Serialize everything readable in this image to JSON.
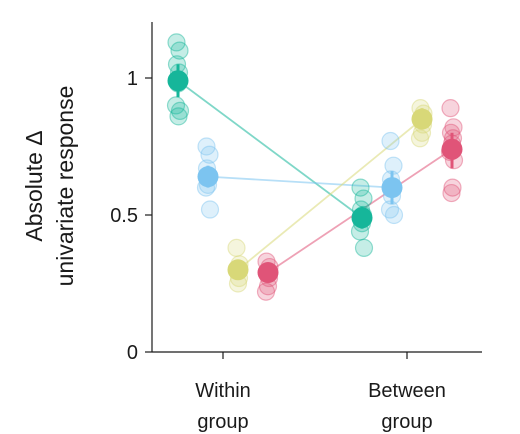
{
  "chart_data": {
    "type": "scatter",
    "ylabel": [
      "Absolute Δ",
      "univariate response"
    ],
    "ylim": [
      0,
      1.2
    ],
    "yticks": [
      {
        "value": 0,
        "label": "0"
      },
      {
        "value": 0.5,
        "label": "0.5"
      },
      {
        "value": 1,
        "label": "1"
      }
    ],
    "categories": [
      {
        "id": "within",
        "label": [
          "Within",
          "group"
        ]
      },
      {
        "id": "between",
        "label": [
          "Between",
          "group"
        ]
      }
    ],
    "series": [
      {
        "color": "#16b69a",
        "within": {
          "mean": 0.99,
          "ci": [
            0.93,
            1.05
          ],
          "points": [
            1.13,
            1.1,
            1.05,
            1.02,
            0.98,
            0.9,
            0.88,
            0.86
          ]
        },
        "between": {
          "mean": 0.49,
          "ci": [
            0.45,
            0.53
          ],
          "points": [
            0.6,
            0.56,
            0.52,
            0.5,
            0.47,
            0.44,
            0.38
          ]
        }
      },
      {
        "color": "#7cc4f0",
        "within": {
          "mean": 0.64,
          "ci": [
            0.6,
            0.68
          ],
          "points": [
            0.75,
            0.72,
            0.67,
            0.64,
            0.61,
            0.6,
            0.52
          ]
        },
        "between": {
          "mean": 0.6,
          "ci": [
            0.54,
            0.66
          ],
          "points": [
            0.77,
            0.68,
            0.63,
            0.6,
            0.57,
            0.52,
            0.5
          ]
        }
      },
      {
        "color": "#d8d878",
        "within": {
          "mean": 0.3,
          "ci": [
            0.27,
            0.33
          ],
          "points": [
            0.38,
            0.32,
            0.3,
            0.27,
            0.25
          ]
        },
        "between": {
          "mean": 0.85,
          "ci": [
            0.82,
            0.89
          ],
          "points": [
            0.89,
            0.87,
            0.85,
            0.83,
            0.8,
            0.78
          ]
        }
      },
      {
        "color": "#e05478",
        "within": {
          "mean": 0.29,
          "ci": [
            0.26,
            0.32
          ],
          "points": [
            0.33,
            0.31,
            0.29,
            0.27,
            0.24,
            0.22
          ]
        },
        "between": {
          "mean": 0.74,
          "ci": [
            0.67,
            0.8
          ],
          "points": [
            0.89,
            0.82,
            0.8,
            0.78,
            0.76,
            0.73,
            0.7,
            0.6,
            0.58
          ]
        }
      }
    ]
  }
}
